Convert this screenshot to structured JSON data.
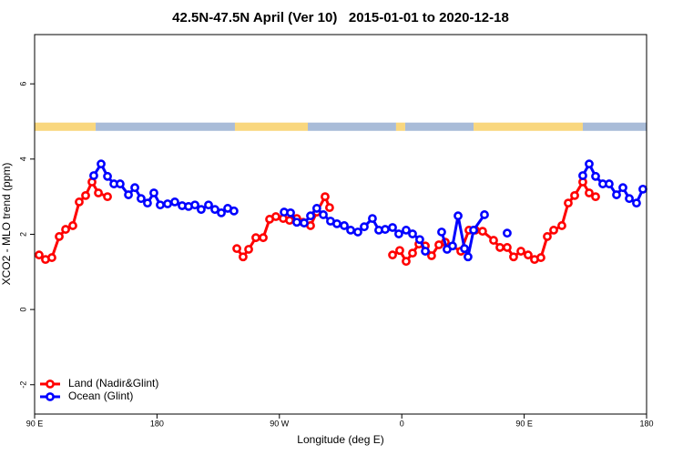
{
  "chart_data": {
    "type": "line",
    "title": "42.5N-47.5N April (Ver 10)   2015-01-01 to 2020-12-18",
    "xlabel": "Longitude (deg E)",
    "ylabel": "XCO2 - MLO trend (ppm)",
    "xlim": [
      90,
      540
    ],
    "ylim": [
      -2.78,
      7.31
    ],
    "xticks": [
      {
        "value": 90,
        "label": "90 E"
      },
      {
        "value": 180,
        "label": "180"
      },
      {
        "value": 270,
        "label": "90 W"
      },
      {
        "value": 360,
        "label": "0"
      },
      {
        "value": 450,
        "label": "90 E"
      },
      {
        "value": 540,
        "label": "180"
      }
    ],
    "yticks": [
      -2,
      0,
      2,
      4,
      6
    ],
    "legend": "bottom-left",
    "surface_bar": {
      "ylim": [
        4.75,
        4.97
      ],
      "segments": [
        {
          "from": 90,
          "to": 134.9,
          "color": "#f9d77e"
        },
        {
          "from": 134.9,
          "to": 237.3,
          "color": "#a9bcd8"
        },
        {
          "from": 237.3,
          "to": 290.9,
          "color": "#f9d77e"
        },
        {
          "from": 290.9,
          "to": 355.8,
          "color": "#a9bcd8"
        },
        {
          "from": 355.8,
          "to": 362.5,
          "color": "#f9d77e"
        },
        {
          "from": 362.5,
          "to": 412.8,
          "color": "#a9bcd8"
        },
        {
          "from": 412.8,
          "to": 493.1,
          "color": "#f9d77e"
        },
        {
          "from": 493.1,
          "to": 540,
          "color": "#a9bcd8"
        }
      ]
    },
    "series": [
      {
        "name": "Land (Nadir&Glint)",
        "color": "#ff0000",
        "x": [
          93.3,
          98.0,
          102.7,
          108.1,
          112.8,
          118.1,
          122.8,
          127.5,
          132.2,
          136.9,
          143.6,
          null,
          238.7,
          243.3,
          247.4,
          252.7,
          258.1,
          262.8,
          267.4,
          272.8,
          277.5,
          282.8,
          287.5,
          292.9,
          297.5,
          303.6,
          306.9,
          null,
          353.2,
          358.5,
          363.2,
          367.9,
          372.6,
          377.3,
          381.9,
          387.3,
          392.0,
          403.4,
          409.4,
          414.1,
          419.4,
          427.5,
          432.2,
          437.5,
          442.2,
          447.6,
          452.9,
          457.6,
          462.3,
          467.0,
          471.7,
          477.7,
          482.4,
          487.1,
          493.1,
          497.8,
          502.5
        ],
        "values": [
          1.45,
          1.33,
          1.38,
          1.94,
          2.13,
          2.23,
          2.86,
          3.03,
          3.39,
          3.1,
          3.0,
          null,
          1.62,
          1.4,
          1.6,
          1.91,
          1.91,
          2.4,
          2.47,
          2.42,
          2.37,
          2.42,
          2.32,
          2.23,
          2.59,
          3.0,
          2.71,
          null,
          1.45,
          1.57,
          1.28,
          1.5,
          1.74,
          1.69,
          1.43,
          1.72,
          1.79,
          1.55,
          2.11,
          2.11,
          2.08,
          1.84,
          1.65,
          1.65,
          1.4,
          1.55,
          1.45,
          1.33,
          1.38,
          1.94,
          2.11,
          2.23,
          2.83,
          3.03,
          3.39,
          3.1,
          3.0
        ]
      },
      {
        "name": "Ocean (Glint)",
        "color": "#0000ff",
        "x": [
          133.5,
          138.9,
          143.6,
          148.3,
          152.9,
          159.0,
          163.7,
          168.3,
          173.0,
          177.7,
          182.4,
          187.8,
          193.1,
          198.5,
          203.2,
          207.9,
          212.5,
          217.9,
          222.6,
          227.3,
          232.0,
          236.6,
          null,
          273.5,
          278.2,
          282.8,
          288.2,
          292.9,
          297.5,
          302.3,
          307.6,
          312.3,
          317.7,
          322.4,
          327.7,
          332.4,
          338.4,
          343.1,
          347.8,
          353.2,
          357.8,
          363.2,
          367.9,
          373.2,
          377.3,
          null,
          389.3,
          393.3,
          397.3,
          401.4,
          406.1,
          408.7,
          412.8,
          420.8,
          null,
          437.5,
          null,
          493.1,
          497.8,
          502.5,
          507.8,
          512.5,
          517.9,
          522.6,
          527.3,
          532.6,
          537.3
        ],
        "values": [
          3.56,
          3.87,
          3.54,
          3.34,
          3.34,
          3.05,
          3.24,
          2.95,
          2.83,
          3.1,
          2.78,
          2.81,
          2.86,
          2.76,
          2.74,
          2.78,
          2.66,
          2.78,
          2.66,
          2.57,
          2.69,
          2.62,
          null,
          2.59,
          2.57,
          2.32,
          2.3,
          2.49,
          2.69,
          2.52,
          2.35,
          2.28,
          2.23,
          2.11,
          2.06,
          2.2,
          2.42,
          2.11,
          2.13,
          2.18,
          2.01,
          2.11,
          2.01,
          1.86,
          1.55,
          null,
          2.06,
          1.6,
          1.69,
          2.49,
          1.62,
          1.4,
          2.11,
          2.52,
          null,
          2.03,
          null,
          3.56,
          3.87,
          3.54,
          3.34,
          3.34,
          3.05,
          3.24,
          2.95,
          2.83,
          3.2
        ]
      }
    ]
  }
}
